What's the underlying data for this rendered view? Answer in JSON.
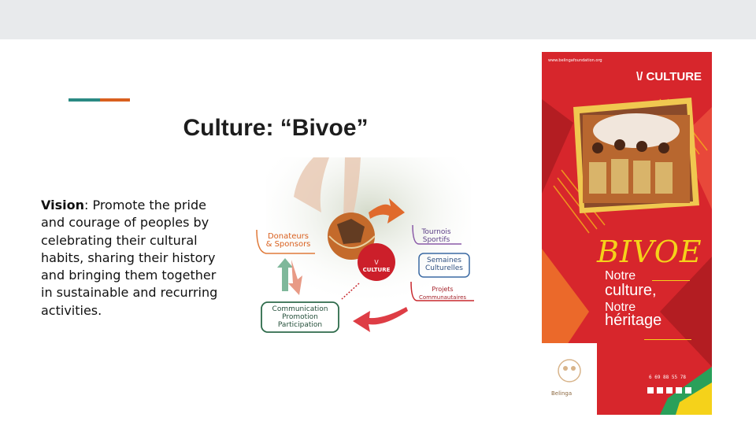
{
  "slide": {
    "title": "Culture: “Bivoe”",
    "vision_label": "Vision",
    "vision_text": ": Promote the pride and courage of peoples by celebrating their cultural habits, sharing their history and bringing them together in sustainable and recurring activities."
  },
  "diagram": {
    "center_label": "\\/ CULTURE",
    "donors_line1": "Donateurs",
    "donors_line2": "& Sponsors",
    "tournois_line1": "Tournois",
    "tournois_line2": "Sportifs",
    "semaines_line1": "Semaines",
    "semaines_line2": "Culturelles",
    "projets_line1": "Projets",
    "projets_line2": "Communautaires",
    "comm_line1": "Communication",
    "comm_line2": "Promotion",
    "comm_line3": "Participation"
  },
  "poster": {
    "url": "www.belingafoundation.org",
    "header": "\\/ CULTURE",
    "bivoe": "BIVOE",
    "line1": "Notre",
    "line2": "culture,",
    "line3": "Notre",
    "line4": "héritage",
    "phone": "6 69 88 55 78",
    "brand": "Belinga"
  },
  "colors": {
    "topbar": "#e8eaec",
    "accent_teal": "#2a8a83",
    "accent_orange": "#d9601f",
    "poster_red": "#d7262c",
    "poster_yellow": "#f5d21a"
  }
}
